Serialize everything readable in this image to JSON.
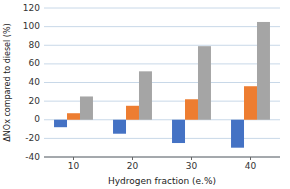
{
  "chart_data": {
    "type": "bar",
    "x": [
      10,
      20,
      30,
      40
    ],
    "series": [
      {
        "color": "#4472C4",
        "values": [
          -8,
          -15,
          -25,
          -30
        ]
      },
      {
        "color": "#ED7D31",
        "values": [
          7,
          15,
          22,
          36
        ]
      },
      {
        "color": "#A5A5A5",
        "values": [
          25,
          52,
          79,
          105
        ]
      }
    ],
    "xlabel": "Hydrogen fraction (e.%)",
    "ylabel": "ΔNOx compared to diesel (%)",
    "xlim": [
      5,
      45
    ],
    "xticks": [
      10,
      20,
      30,
      40
    ],
    "ylim": [
      -40,
      120
    ],
    "yticks": [
      -40,
      -20,
      0,
      20,
      40,
      60,
      80,
      100,
      120
    ],
    "grid": true
  }
}
